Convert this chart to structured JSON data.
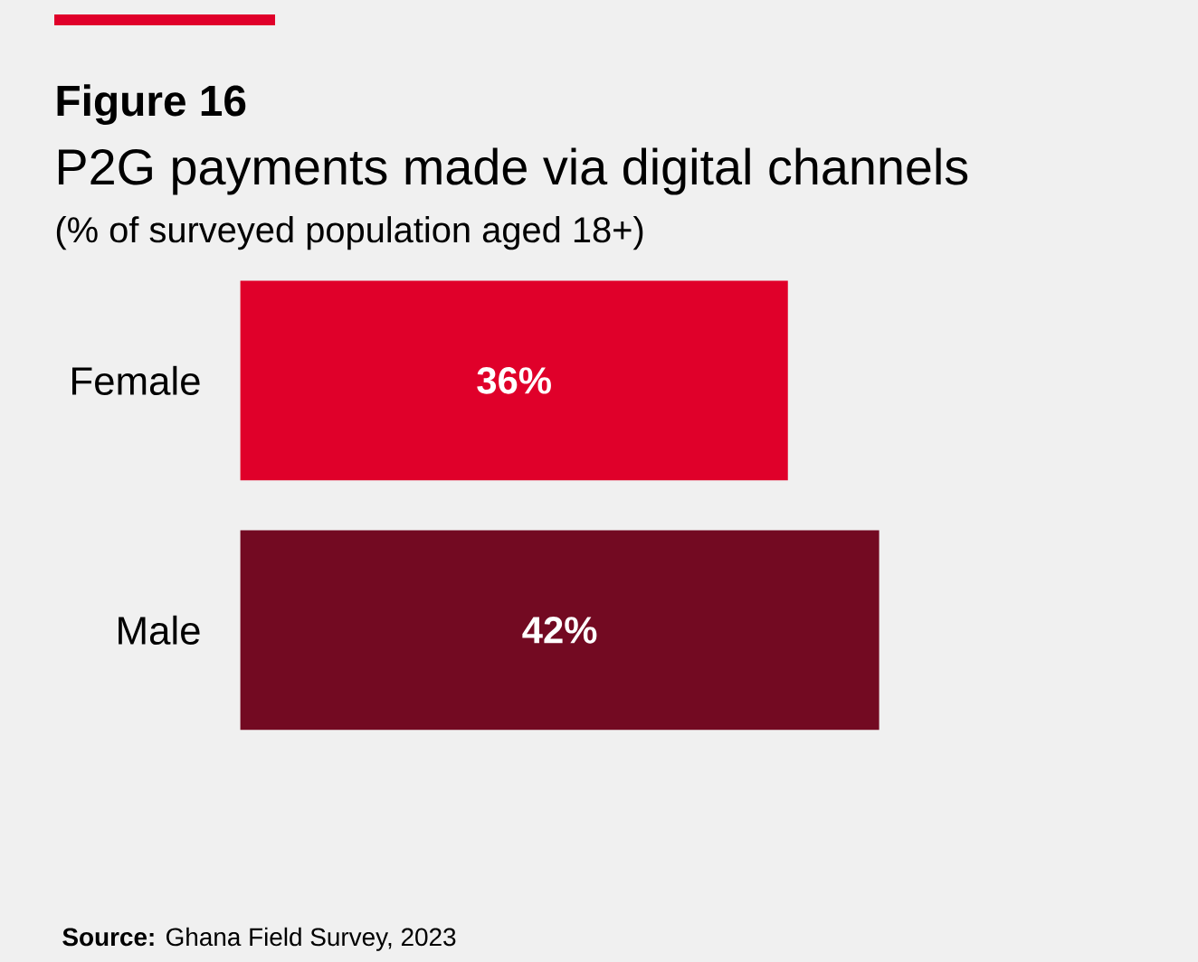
{
  "chart_data": {
    "type": "bar",
    "orientation": "horizontal",
    "title": "Figure 16",
    "subtitle": "P2G payments made via digital channels",
    "annotations": [
      "(% of surveyed population aged 18+)",
      "**Source:** Ghana Field Survey, 2023"
    ],
    "categories": [
      "Female",
      "Male"
    ],
    "values": [
      36,
      42
    ],
    "value_labels": [
      "36%",
      "42%"
    ],
    "colors": [
      "#e0002a",
      "#730a22"
    ],
    "tick_labels": "y",
    "grid": false
  }
}
